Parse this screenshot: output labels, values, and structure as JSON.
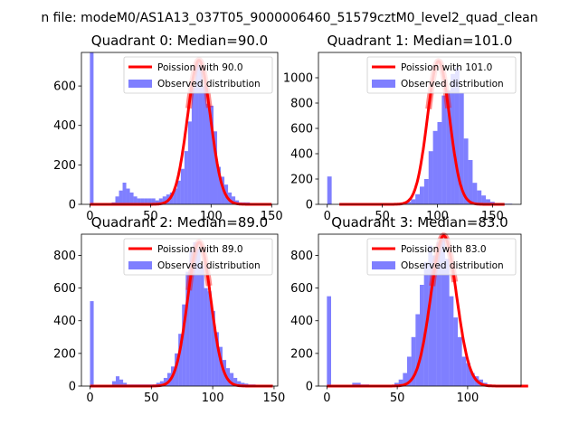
{
  "suptitle": "n file: modeM0/AS1A13_037T05_9000006460_51579cztM0_level2_quad_clean",
  "colors": {
    "hist": "#0000ff",
    "fit": "#ff0000"
  },
  "chart_data": [
    {
      "type": "histogram",
      "title": "Quadrant 0: Median=90.0",
      "legend": {
        "fit_label": "Poission with 90.0",
        "hist_label": "Observed distribution",
        "placement": "top-right"
      },
      "xlim": [
        -7,
        155
      ],
      "ylim": [
        0,
        770
      ],
      "xticks": [
        0,
        50,
        100,
        150
      ],
      "yticks": [
        0,
        200,
        400,
        600
      ],
      "median": 90,
      "fit_peak": 730,
      "hist_x0": 0,
      "bin_width": 3,
      "hist_values": [
        770,
        0,
        0,
        0,
        0,
        0,
        10,
        40,
        70,
        110,
        80,
        60,
        40,
        30,
        30,
        30,
        30,
        30,
        20,
        30,
        40,
        50,
        60,
        80,
        120,
        180,
        270,
        420,
        600,
        720,
        700,
        600,
        510,
        500,
        370,
        190,
        140,
        100,
        60,
        40,
        20,
        10,
        10,
        10,
        5,
        5,
        5,
        5,
        0
      ]
    },
    {
      "type": "histogram",
      "title": "Quadrant 1: Median=101.0",
      "legend": {
        "fit_label": "Poission with 101.0",
        "hist_label": "Observed distribution",
        "placement": "top-right"
      },
      "xlim": [
        -8,
        176
      ],
      "ylim": [
        0,
        1200
      ],
      "xticks": [
        0,
        50,
        100,
        150
      ],
      "yticks": [
        0,
        200,
        400,
        600,
        800,
        1000
      ],
      "median": 101,
      "fit_peak": 1130,
      "hist_x0": 0,
      "bin_width": 4,
      "hist_values": [
        220,
        0,
        0,
        0,
        0,
        0,
        0,
        0,
        0,
        0,
        0,
        0,
        5,
        5,
        5,
        10,
        10,
        10,
        20,
        40,
        80,
        140,
        200,
        420,
        580,
        650,
        860,
        900,
        1030,
        1080,
        880,
        520,
        350,
        170,
        110,
        70,
        40,
        20,
        10,
        10,
        5,
        5
      ]
    },
    {
      "type": "histogram",
      "title": "Quadrant 2: Median=89.0",
      "legend": {
        "fit_label": "Poission with 89.0",
        "hist_label": "Observed distribution",
        "placement": "top-right"
      },
      "xlim": [
        -7,
        153
      ],
      "ylim": [
        0,
        930
      ],
      "xticks": [
        0,
        50,
        100,
        150
      ],
      "yticks": [
        0,
        200,
        400,
        600,
        800
      ],
      "median": 89,
      "fit_peak": 880,
      "hist_x0": 0,
      "bin_width": 3,
      "hist_values": [
        520,
        0,
        0,
        0,
        0,
        0,
        30,
        60,
        40,
        20,
        10,
        10,
        10,
        10,
        10,
        10,
        10,
        10,
        20,
        30,
        50,
        80,
        120,
        200,
        320,
        500,
        700,
        830,
        880,
        840,
        740,
        600,
        580,
        460,
        330,
        240,
        160,
        110,
        80,
        50,
        30,
        20,
        15,
        10,
        10,
        5,
        5,
        5
      ]
    },
    {
      "type": "histogram",
      "title": "Quadrant 3: Median=83.0",
      "legend": {
        "fit_label": "Poission with 83.0",
        "hist_label": "Observed distribution",
        "placement": "top-right"
      },
      "xlim": [
        -6,
        138
      ],
      "ylim": [
        0,
        930
      ],
      "xticks": [
        0,
        50,
        100
      ],
      "yticks": [
        0,
        200,
        400,
        600,
        800
      ],
      "median": 83,
      "fit_peak": 920,
      "hist_x0": 0,
      "bin_width": 3,
      "hist_values": [
        550,
        0,
        0,
        0,
        0,
        0,
        20,
        20,
        10,
        10,
        5,
        5,
        5,
        5,
        5,
        5,
        20,
        40,
        80,
        180,
        300,
        440,
        620,
        760,
        860,
        800,
        880,
        900,
        780,
        550,
        420,
        300,
        180,
        140,
        80,
        60,
        40,
        20,
        10,
        5,
        5,
        5,
        5,
        5
      ]
    }
  ]
}
